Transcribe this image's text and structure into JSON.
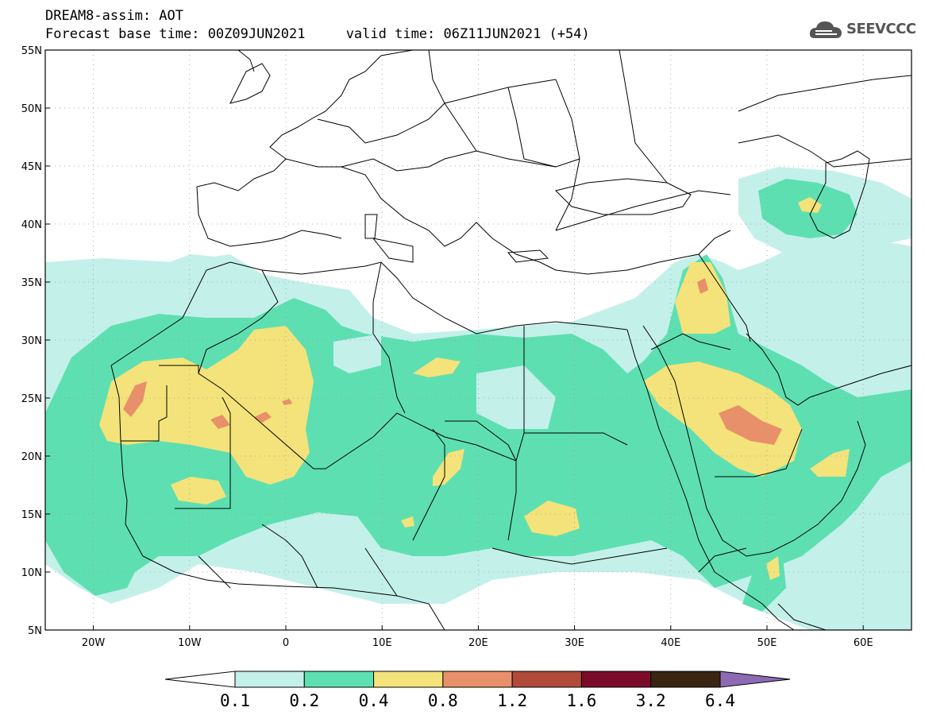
{
  "header": {
    "line1": "DREAM8-assim: AOT",
    "line2": "Forecast base time: 00Z09JUN2021     valid time: 06Z11JUN2021 (+54)"
  },
  "logo": {
    "text": "SEEVCCC",
    "icon": "cloud-icon"
  },
  "map": {
    "lon_range": [
      -25,
      65
    ],
    "lat_range": [
      5,
      55
    ],
    "x_ticks": [
      "20W",
      "10W",
      "0",
      "10E",
      "20E",
      "30E",
      "40E",
      "50E",
      "60E"
    ],
    "y_ticks": [
      "55N",
      "50N",
      "45N",
      "40N",
      "35N",
      "30N",
      "25N",
      "20N",
      "15N",
      "10N",
      "5N"
    ],
    "grid": "dotted"
  },
  "colorbar": {
    "levels": [
      "0.1",
      "0.2",
      "0.4",
      "0.8",
      "1.2",
      "1.6",
      "3.2",
      "6.4"
    ],
    "colors": [
      "#c4f0ea",
      "#5edfb2",
      "#f3e37a",
      "#e8906a",
      "#b04a3a",
      "#7a0c2a",
      "#3a2412",
      "#8e6ab5"
    ]
  }
}
